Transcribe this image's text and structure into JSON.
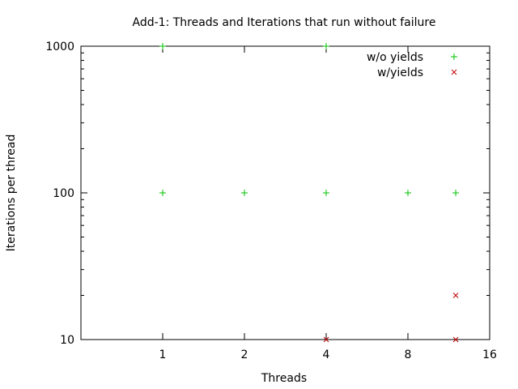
{
  "chart_data": {
    "type": "scatter",
    "title": "Add-1: Threads and Iterations that run without failure",
    "xlabel": "Threads",
    "ylabel": "Iterations per thread",
    "x_scale": "log2",
    "y_scale": "log10",
    "xlim": [
      0.5,
      16
    ],
    "ylim": [
      10,
      1000
    ],
    "x_ticks": [
      1,
      2,
      4,
      8,
      16
    ],
    "y_ticks": [
      10,
      100,
      1000
    ],
    "grid": false,
    "legend_position": "top-right",
    "series": [
      {
        "name": "w/o yields",
        "marker": "+",
        "color": "#00c000",
        "points": [
          [
            1,
            1000
          ],
          [
            4,
            1000
          ],
          [
            1,
            100
          ],
          [
            2,
            100
          ],
          [
            4,
            100
          ],
          [
            8,
            100
          ],
          [
            12,
            100
          ]
        ]
      },
      {
        "name": "w/yields",
        "marker": "x",
        "color": "#c00000",
        "points": [
          [
            12,
            20
          ],
          [
            4,
            10
          ],
          [
            12,
            10
          ]
        ]
      }
    ]
  }
}
